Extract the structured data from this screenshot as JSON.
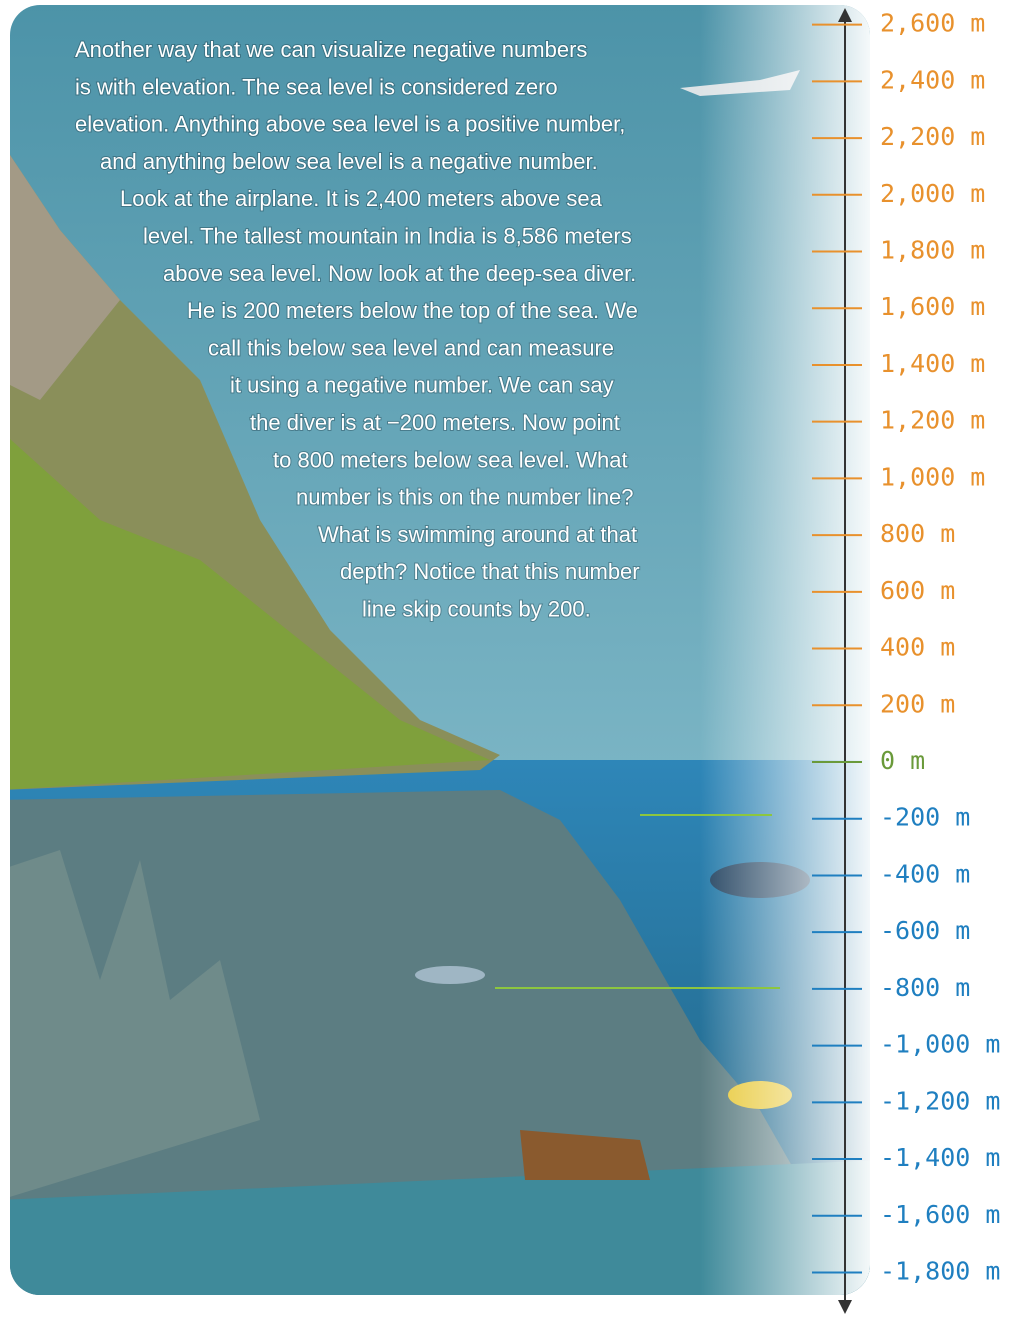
{
  "paragraph": [
    "Another way that we can visualize negative numbers",
    "is with elevation. The sea level is considered zero",
    "elevation. Anything above sea level is a positive number,",
    "and anything below sea level is a negative number.",
    "Look at the airplane. It is 2,400 meters above sea",
    "level. The tallest mountain in India is 8,586 meters",
    "above sea level. Now look at the deep-sea diver.",
    "He is 200 meters below the top of the sea. We",
    "call this below sea level and can measure",
    "it using a negative number. We can say",
    "the diver is at −200 meters. Now point",
    "to 800 meters below sea level. What",
    "number is this on the number line?",
    "What is swimming around at that",
    "depth? Notice that this number",
    "line skip counts by 200."
  ],
  "number_line": {
    "ticks": [
      {
        "value": 2600,
        "label": "2,600 m"
      },
      {
        "value": 2400,
        "label": "2,400 m"
      },
      {
        "value": 2200,
        "label": "2,200 m"
      },
      {
        "value": 2000,
        "label": "2,000 m"
      },
      {
        "value": 1800,
        "label": "1,800 m"
      },
      {
        "value": 1600,
        "label": "1,600 m"
      },
      {
        "value": 1400,
        "label": "1,400 m"
      },
      {
        "value": 1200,
        "label": "1,200 m"
      },
      {
        "value": 1000,
        "label": "1,000 m"
      },
      {
        "value": 800,
        "label": "800 m"
      },
      {
        "value": 600,
        "label": "600 m"
      },
      {
        "value": 400,
        "label": "400 m"
      },
      {
        "value": 200,
        "label": "200 m"
      },
      {
        "value": 0,
        "label": "0 m"
      },
      {
        "value": -200,
        "label": "-200 m"
      },
      {
        "value": -400,
        "label": "-400 m"
      },
      {
        "value": -600,
        "label": "-600 m"
      },
      {
        "value": -800,
        "label": "-800 m"
      },
      {
        "value": -1000,
        "label": "-1,000 m"
      },
      {
        "value": -1200,
        "label": "-1,200 m"
      },
      {
        "value": -1400,
        "label": "-1,400 m"
      },
      {
        "value": -1600,
        "label": "-1,600 m"
      },
      {
        "value": -1800,
        "label": "-1,800 m"
      }
    ],
    "colors": {
      "positive": "#e8912d",
      "zero": "#6a9a3a",
      "negative": "#1f7fc0"
    }
  }
}
